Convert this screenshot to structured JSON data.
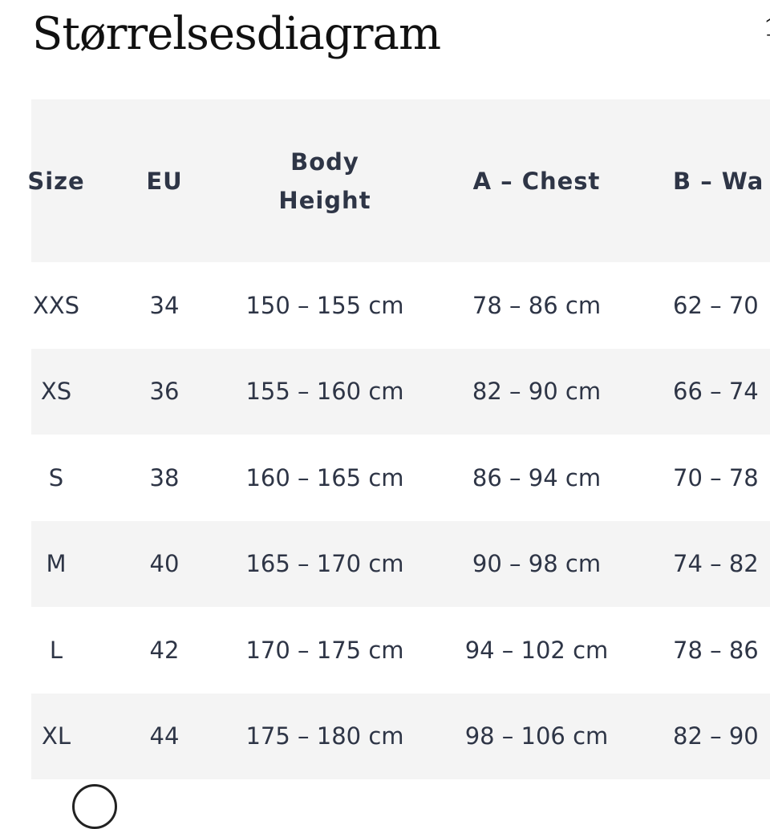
{
  "title": "Størrelsesdiagram",
  "corner_glyph": "1",
  "headers": [
    "Size",
    "EU",
    "Body Height",
    "A – Chest",
    "B – Wa"
  ],
  "rows": [
    [
      "XXS",
      "34",
      "150 – 155 cm",
      "78 – 86 cm",
      "62 – 70"
    ],
    [
      "XS",
      "36",
      "155 – 160 cm",
      "82 – 90 cm",
      "66 – 74"
    ],
    [
      "S",
      "38",
      "160 – 165 cm",
      "86 – 94 cm",
      "70 – 78"
    ],
    [
      "M",
      "40",
      "165 – 170 cm",
      "90 – 98 cm",
      "74 – 82"
    ],
    [
      "L",
      "42",
      "170 – 175 cm",
      "94 – 102 cm",
      "78 – 86"
    ],
    [
      "XL",
      "44",
      "175 – 180 cm",
      "98 – 106 cm",
      "82 – 90"
    ]
  ],
  "colors": {
    "text": "#2e3546",
    "stripe": "#f4f4f4"
  }
}
